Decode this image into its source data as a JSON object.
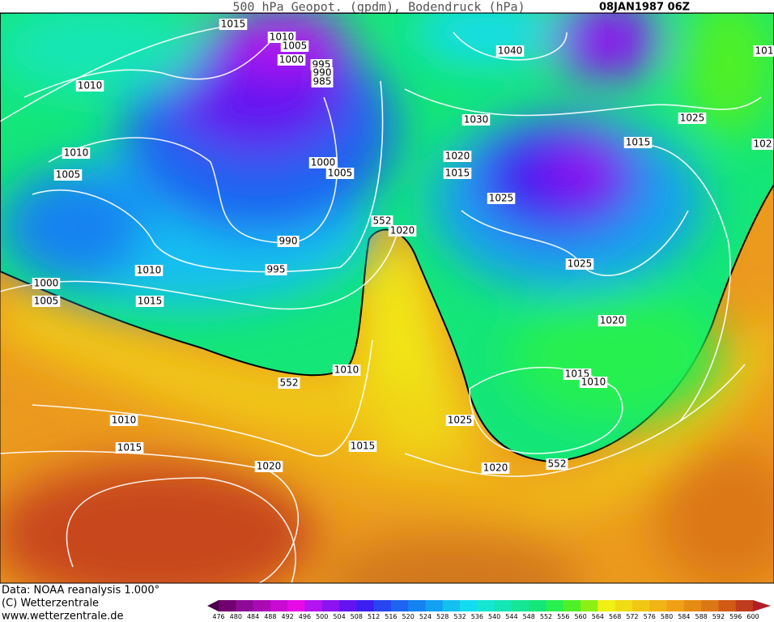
{
  "header": {
    "title": "500 hPa Geopot. (gpdm), Bodendruck (hPa)",
    "date": "08JAN1987 06Z"
  },
  "isobar_labels": [
    "1015",
    "1010",
    "1005",
    "1000",
    "995",
    "990",
    "985",
    "1040",
    "1010",
    "1030",
    "1025",
    "1015",
    "102",
    "101",
    "1010",
    "1020",
    "1005",
    "1000",
    "1005",
    "1015",
    "1025",
    "552",
    "1020",
    "990",
    "995",
    "1010",
    "1025",
    "1000",
    "1005",
    "1015",
    "1020",
    "1010",
    "552",
    "1015",
    "1010",
    "1010",
    "1025",
    "1015",
    "1015",
    "1020",
    "1020",
    "552"
  ],
  "footer": {
    "source": "Data: NOAA reanalysis 1.000°",
    "copyright": "(C) Wetterzentrale",
    "url": "www.wetterzentrale.de"
  },
  "colorbar": {
    "levels": [
      476,
      480,
      484,
      488,
      492,
      496,
      500,
      504,
      508,
      512,
      516,
      520,
      524,
      528,
      532,
      536,
      540,
      544,
      548,
      552,
      556,
      560,
      564,
      568,
      572,
      576,
      580,
      584,
      588,
      592,
      596,
      600
    ],
    "colors": [
      "#4a004a",
      "#700070",
      "#8c0a96",
      "#aa0ab4",
      "#c80ad2",
      "#e60ae6",
      "#b414f0",
      "#8c14f0",
      "#6414f0",
      "#3c1ef0",
      "#2846f0",
      "#1e64f0",
      "#1482f0",
      "#14a0f0",
      "#14c0f0",
      "#14dcf0",
      "#14e6d2",
      "#14e6b4",
      "#14e696",
      "#14e678",
      "#28f050",
      "#50f028",
      "#8cf014",
      "#f0f014",
      "#f0dc14",
      "#f0c814",
      "#f0b414",
      "#f0a014",
      "#e68c14",
      "#dc7814",
      "#d25a14",
      "#c03c1e",
      "#b41e28"
    ]
  }
}
